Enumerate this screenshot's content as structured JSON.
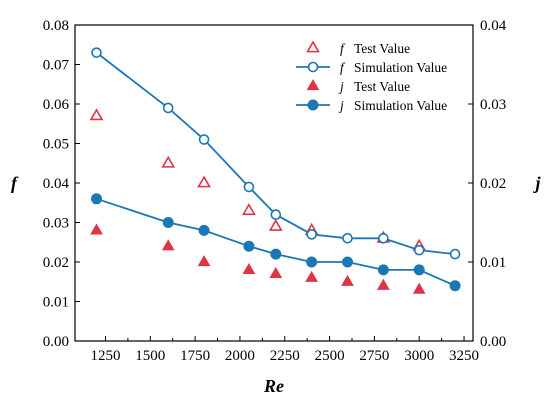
{
  "chart_data": {
    "type": "line",
    "xlabel": "Re",
    "ylabel_left": "f",
    "ylabel_right": "j",
    "xlim": [
      1080,
      3300
    ],
    "ylim_left": [
      0.0,
      0.08
    ],
    "ylim_right": [
      0.0,
      0.04
    ],
    "x_ticks": [
      1250,
      1500,
      1750,
      2000,
      2250,
      2500,
      2750,
      3000,
      3250
    ],
    "x_tick_labels": [
      "1250",
      "1500",
      "1750",
      "2000",
      "2250",
      "2500",
      "2750",
      "3000",
      "3250"
    ],
    "y_left_ticks": [
      0.0,
      0.01,
      0.02,
      0.03,
      0.04,
      0.05,
      0.06,
      0.07,
      0.08
    ],
    "y_left_tick_labels": [
      "0.00",
      "0.01",
      "0.02",
      "0.03",
      "0.04",
      "0.05",
      "0.06",
      "0.07",
      "0.08"
    ],
    "y_right_ticks": [
      0.0,
      0.01,
      0.02,
      0.03,
      0.04
    ],
    "y_right_tick_labels": [
      "0.00",
      "0.01",
      "0.02",
      "0.03",
      "0.04"
    ],
    "grid": false,
    "legend_position": "top-right",
    "series": [
      {
        "name_symbol": "f",
        "name_text": "Test Value",
        "style": "scatter",
        "marker": "triangle-open",
        "axis": "left",
        "color": "#dc3545",
        "x": [
          1200,
          1600,
          1800,
          2050,
          2200,
          2400,
          2800,
          3000
        ],
        "values": [
          0.057,
          0.045,
          0.04,
          0.033,
          0.029,
          0.028,
          0.026,
          0.024
        ]
      },
      {
        "name_symbol": "f",
        "name_text": "Simulation Value",
        "style": "line",
        "marker": "circle-open",
        "axis": "left",
        "color": "#1b78b4",
        "x": [
          1200,
          1600,
          1800,
          2050,
          2200,
          2400,
          2600,
          2800,
          3000,
          3200
        ],
        "values": [
          0.073,
          0.059,
          0.051,
          0.039,
          0.032,
          0.027,
          0.026,
          0.026,
          0.023,
          0.022
        ]
      },
      {
        "name_symbol": "j",
        "name_text": "Test Value",
        "style": "scatter",
        "marker": "triangle-filled",
        "axis": "right",
        "color": "#dc3545",
        "x": [
          1200,
          1600,
          1800,
          2050,
          2200,
          2400,
          2600,
          2800,
          3000
        ],
        "values": [
          0.014,
          0.012,
          0.01,
          0.009,
          0.0085,
          0.008,
          0.0075,
          0.007,
          0.0065
        ]
      },
      {
        "name_symbol": "j",
        "name_text": "Simulation Value",
        "style": "line",
        "marker": "circle-filled",
        "axis": "right",
        "color": "#1b78b4",
        "x": [
          1200,
          1600,
          1800,
          2050,
          2200,
          2400,
          2600,
          2800,
          3000,
          3200
        ],
        "values": [
          0.018,
          0.015,
          0.014,
          0.012,
          0.011,
          0.01,
          0.01,
          0.009,
          0.009,
          0.007
        ]
      }
    ]
  }
}
